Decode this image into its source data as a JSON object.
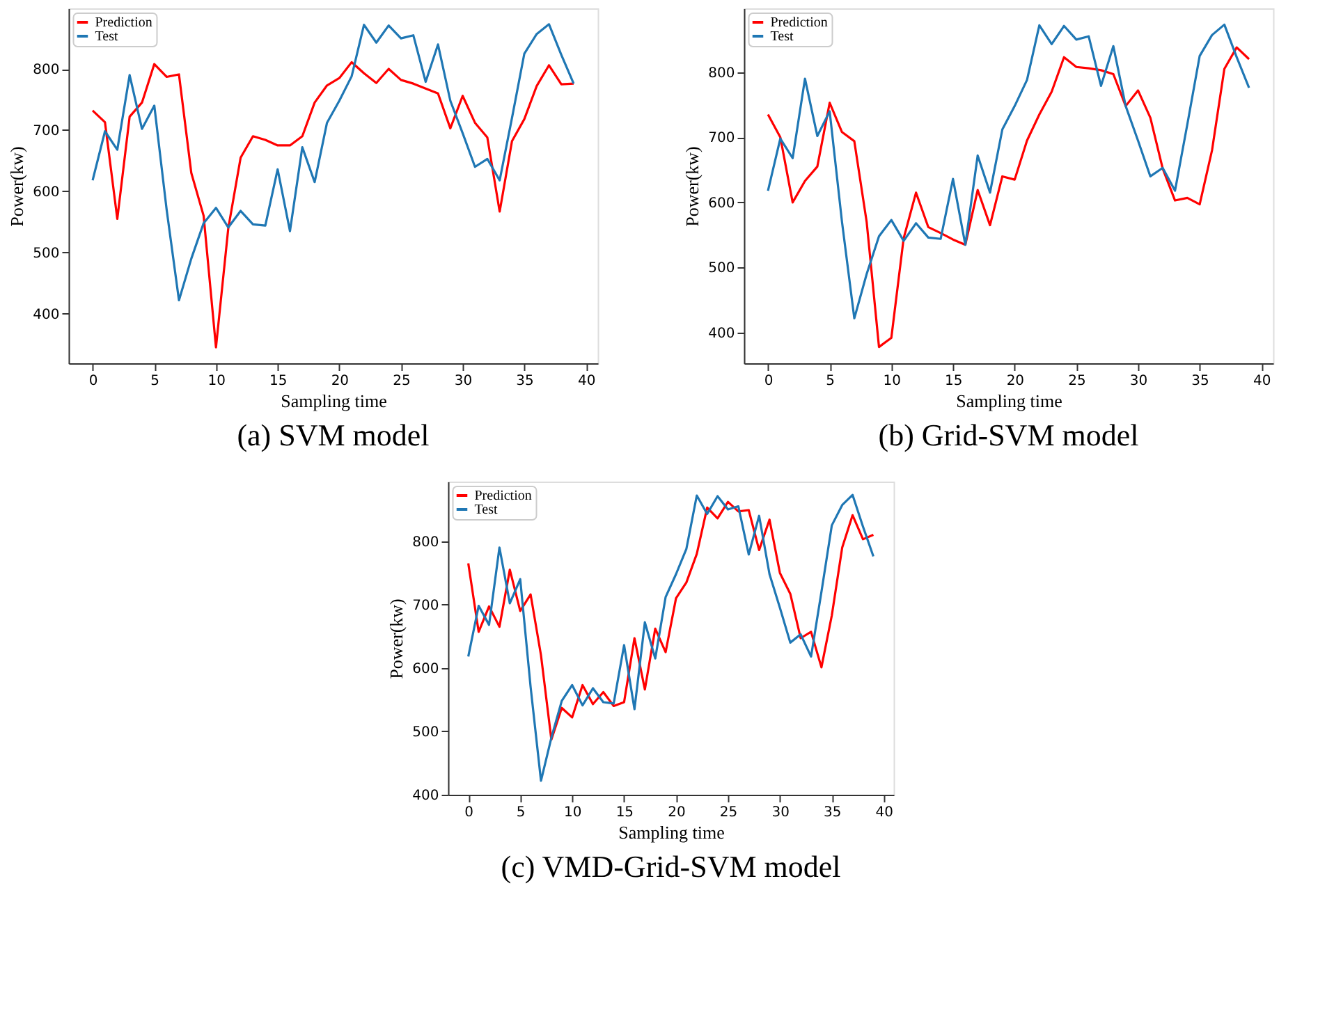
{
  "chart_data": [
    {
      "type": "line",
      "title": "(a) SVM model",
      "xlabel": "Sampling time",
      "ylabel": "Power(kw)",
      "legend": "top left",
      "grid": false,
      "line_style": "solid",
      "x": [
        0,
        1,
        2,
        3,
        4,
        5,
        6,
        7,
        8,
        9,
        10,
        11,
        12,
        13,
        14,
        15,
        16,
        17,
        18,
        19,
        20,
        21,
        22,
        23,
        24,
        25,
        26,
        27,
        28,
        29,
        30,
        31,
        32,
        33,
        34,
        35,
        36,
        37,
        38,
        39
      ],
      "xlim": [
        -1.95,
        40.95
      ],
      "xticks": [
        0,
        5,
        10,
        15,
        20,
        25,
        30,
        35,
        40
      ],
      "ylim": [
        319,
        899
      ],
      "yticks": [
        400,
        500,
        600,
        700,
        800
      ],
      "series": [
        {
          "name": "Prediction",
          "color": "#ff0000",
          "values": [
            732,
            713,
            555,
            722,
            745,
            808,
            787,
            791,
            630,
            560,
            345,
            540,
            655,
            690,
            684,
            675,
            675,
            690,
            745,
            773,
            785,
            811,
            793,
            777,
            800,
            782,
            776,
            768,
            760,
            703,
            756,
            712,
            688,
            567,
            682,
            718,
            772,
            806,
            775,
            776
          ]
        },
        {
          "name": "Test",
          "color": "#1f77b4",
          "values": [
            618,
            698,
            668,
            790,
            702,
            740,
            570,
            422,
            490,
            548,
            573,
            541,
            568,
            546,
            544,
            636,
            535,
            672,
            615,
            712,
            748,
            788,
            872,
            843,
            871,
            850,
            855,
            779,
            840,
            748,
            695,
            640,
            653,
            618,
            720,
            825,
            857,
            873,
            823,
            776
          ]
        }
      ]
    },
    {
      "type": "line",
      "title": "(b) Grid-SVM model",
      "xlabel": "Sampling time",
      "ylabel": "Power(kw)",
      "legend": "top left",
      "grid": false,
      "line_style": "solid",
      "x": [
        0,
        1,
        2,
        3,
        4,
        5,
        6,
        7,
        8,
        9,
        10,
        11,
        12,
        13,
        14,
        15,
        16,
        17,
        18,
        19,
        20,
        21,
        22,
        23,
        24,
        25,
        26,
        27,
        28,
        29,
        30,
        31,
        32,
        33,
        34,
        35,
        36,
        37,
        38,
        39
      ],
      "xlim": [
        -1.95,
        40.95
      ],
      "xticks": [
        0,
        5,
        10,
        15,
        20,
        25,
        30,
        35,
        40
      ],
      "ylim": [
        353,
        898
      ],
      "yticks": [
        400,
        500,
        600,
        700,
        800
      ],
      "series": [
        {
          "name": "Prediction",
          "color": "#ff0000",
          "values": [
            735,
            700,
            600,
            633,
            655,
            753,
            708,
            694,
            570,
            378,
            392,
            545,
            615,
            562,
            553,
            543,
            535,
            619,
            565,
            640,
            635,
            695,
            735,
            770,
            823,
            808,
            806,
            803,
            797,
            748,
            772,
            730,
            652,
            603,
            607,
            597,
            680,
            805,
            838,
            820
          ]
        },
        {
          "name": "Test",
          "color": "#1f77b4",
          "values": [
            618,
            698,
            668,
            790,
            702,
            740,
            570,
            422,
            490,
            548,
            573,
            541,
            568,
            546,
            544,
            636,
            535,
            672,
            615,
            712,
            748,
            788,
            872,
            843,
            871,
            850,
            855,
            779,
            840,
            748,
            695,
            640,
            653,
            618,
            720,
            825,
            857,
            873,
            823,
            776
          ]
        }
      ]
    },
    {
      "type": "line",
      "title": "(c) VMD-Grid-SVM model",
      "xlabel": "Sampling time",
      "ylabel": "Power(kw)",
      "legend": "top left",
      "grid": false,
      "line_style": "solid",
      "x": [
        0,
        1,
        2,
        3,
        4,
        5,
        6,
        7,
        8,
        9,
        10,
        11,
        12,
        13,
        14,
        15,
        16,
        17,
        18,
        19,
        20,
        21,
        22,
        23,
        24,
        25,
        26,
        27,
        28,
        29,
        30,
        31,
        32,
        33,
        34,
        35,
        36,
        37,
        38,
        39
      ],
      "xlim": [
        -1.95,
        40.95
      ],
      "xticks": [
        0,
        5,
        10,
        15,
        20,
        25,
        30,
        35,
        40
      ],
      "ylim": [
        400,
        894
      ],
      "yticks": [
        400,
        500,
        600,
        700,
        800
      ],
      "series": [
        {
          "name": "Prediction",
          "color": "#ff0000",
          "values": [
            765,
            657,
            697,
            665,
            755,
            690,
            716,
            620,
            487,
            537,
            522,
            573,
            543,
            562,
            540,
            546,
            647,
            566,
            662,
            625,
            710,
            735,
            780,
            853,
            836,
            862,
            847,
            849,
            786,
            834,
            750,
            717,
            647,
            657,
            601,
            683,
            790,
            841,
            803,
            810
          ]
        },
        {
          "name": "Test",
          "color": "#1f77b4",
          "values": [
            618,
            698,
            668,
            790,
            702,
            740,
            570,
            422,
            490,
            548,
            573,
            541,
            568,
            546,
            544,
            636,
            535,
            672,
            615,
            712,
            748,
            788,
            872,
            843,
            871,
            850,
            855,
            779,
            840,
            748,
            695,
            640,
            653,
            618,
            720,
            825,
            857,
            873,
            823,
            776
          ]
        }
      ]
    }
  ]
}
